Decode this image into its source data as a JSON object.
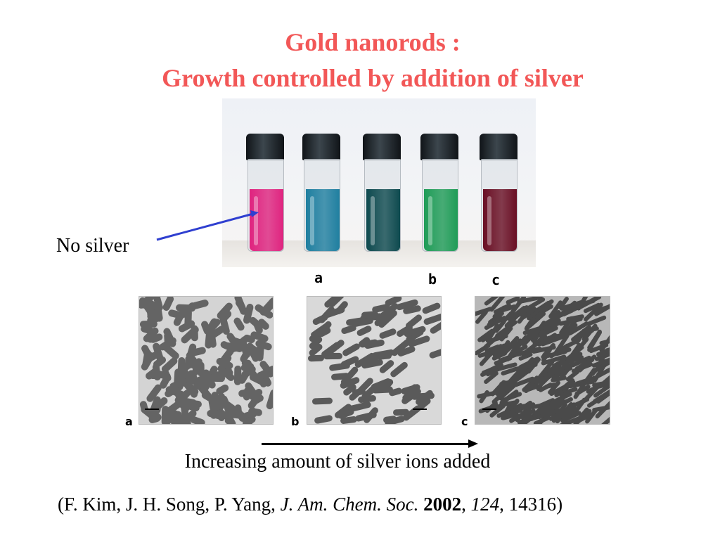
{
  "title": {
    "line1": "Gold nanorods :",
    "line2": "Growth controlled by addition of silver"
  },
  "vials": [
    {
      "color": "#e0237f"
    },
    {
      "color": "#1f7fa0"
    },
    {
      "color": "#0e4a4f"
    },
    {
      "color": "#1f9c57"
    },
    {
      "color": "#6a0f24"
    }
  ],
  "sample_labels": [
    "a",
    "b",
    "c"
  ],
  "no_silver_label": "No silver",
  "arrow_color": "#2f3fd0",
  "panels": [
    {
      "letter": "a"
    },
    {
      "letter": "b"
    },
    {
      "letter": "c"
    }
  ],
  "caption": "Increasing amount of silver ions added",
  "citation": {
    "open": "(F. Kim, J. H. Song, P. Yang, ",
    "journal": "J. Am. Chem. Soc.",
    "year": "2002",
    "comma": ",",
    "volume": "124",
    "pages": ", 14316)"
  }
}
